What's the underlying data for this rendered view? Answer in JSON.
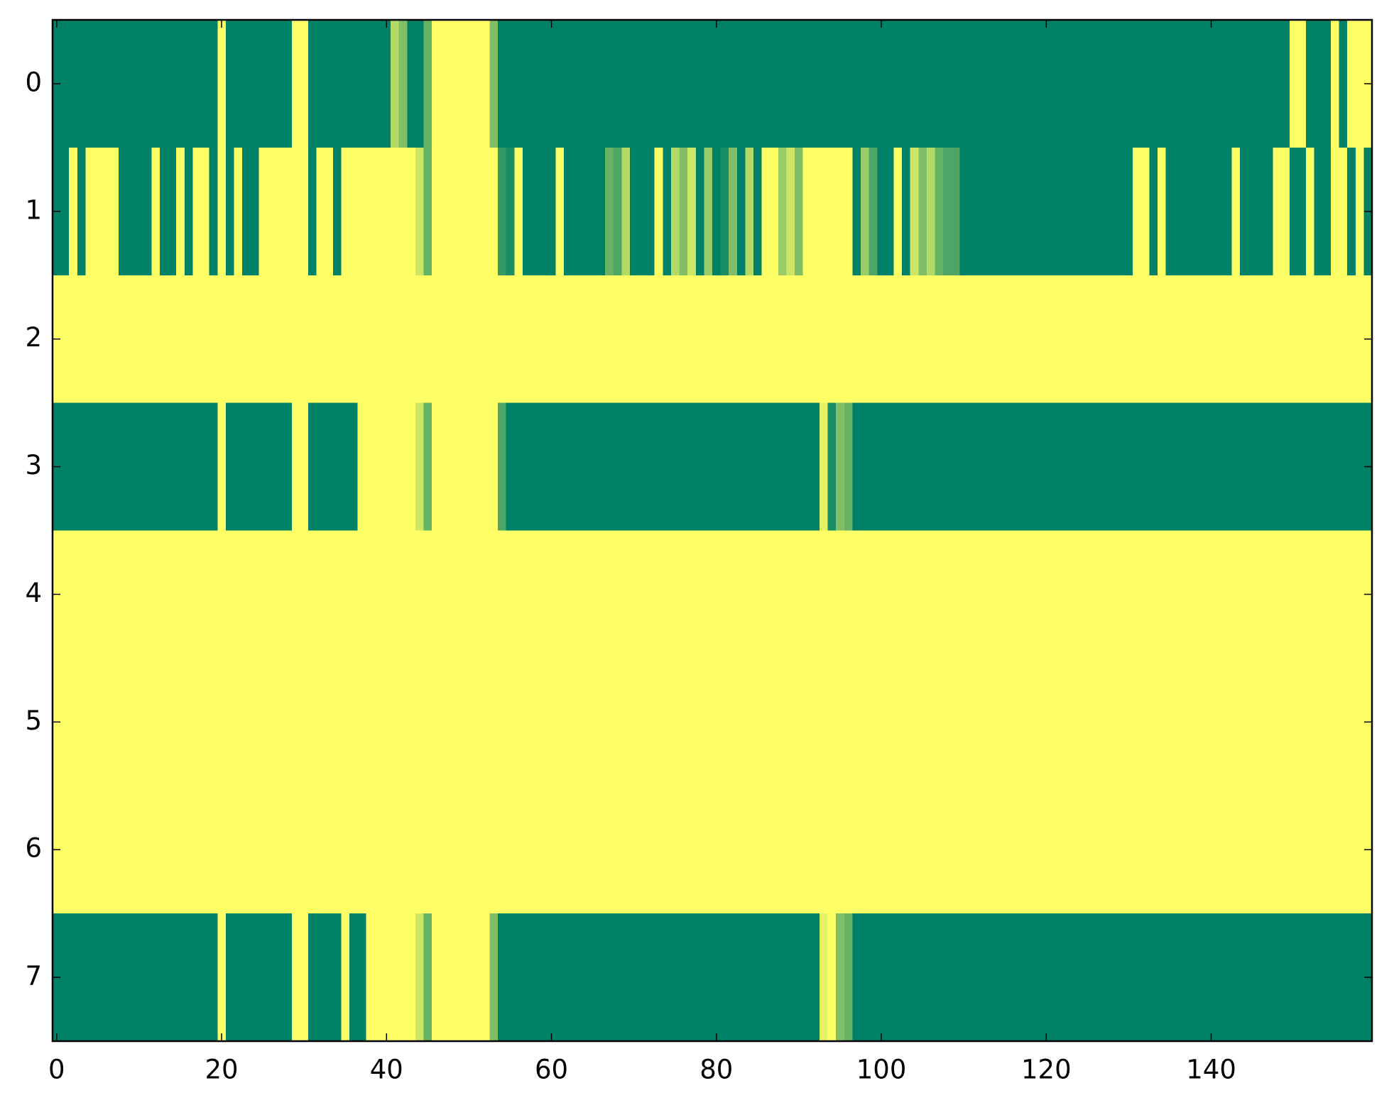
{
  "chart_data": {
    "type": "heatmap",
    "colormap": "summer",
    "xlim": [
      -0.5,
      159.5
    ],
    "ylim": [
      7.5,
      -0.5
    ],
    "xticks": [
      0,
      20,
      40,
      60,
      80,
      100,
      120,
      140
    ],
    "yticks": [
      0,
      1,
      2,
      3,
      4,
      5,
      6,
      7
    ],
    "z": [
      [
        0,
        0,
        0,
        0,
        0,
        0,
        0,
        0,
        0,
        0,
        0,
        0,
        0,
        0,
        0,
        0,
        0,
        0,
        0,
        0,
        1,
        0,
        0,
        0,
        0,
        0,
        0,
        0,
        0,
        1,
        1,
        0,
        0,
        0,
        0,
        0,
        0,
        0,
        0,
        0,
        0,
        0.7,
        0.5,
        0,
        0,
        0.4,
        1,
        1,
        1,
        1,
        1,
        1,
        1,
        0.5,
        0,
        0,
        0,
        0,
        0,
        0,
        0,
        0,
        0,
        0,
        0,
        0,
        0,
        0,
        0,
        0,
        0,
        0,
        0,
        0,
        0,
        0,
        0,
        0,
        0,
        0,
        0,
        0,
        0,
        0,
        0,
        0,
        0,
        0,
        0,
        0,
        0,
        0,
        0,
        0,
        0,
        0,
        0,
        0,
        0,
        0,
        0,
        0,
        0,
        0,
        0,
        0,
        0,
        0,
        0,
        0,
        0,
        0,
        0,
        0,
        0,
        0,
        0,
        0,
        0,
        0,
        0,
        0,
        0,
        0,
        0,
        0,
        0,
        0,
        0,
        0,
        0,
        0,
        0,
        0,
        0,
        0,
        0,
        0,
        0,
        0,
        0,
        0,
        0,
        0,
        0,
        0,
        0,
        0,
        0,
        0,
        1,
        1,
        0,
        0,
        0,
        1,
        0,
        1,
        1,
        1
      ],
      [
        0,
        0,
        1,
        0,
        1,
        1,
        1,
        1,
        0,
        0,
        0,
        0,
        1,
        0,
        0,
        1,
        0,
        1,
        1,
        0,
        1,
        0,
        1,
        0,
        0,
        1,
        1,
        1,
        1,
        1,
        1,
        0,
        1,
        1,
        0,
        1,
        1,
        1,
        1,
        1,
        1,
        1,
        1,
        1,
        0.8,
        0.4,
        1,
        1,
        1,
        1,
        1,
        1,
        1,
        1,
        0.2,
        0.1,
        1,
        0,
        0,
        0,
        0,
        1,
        0,
        0,
        0,
        0,
        0,
        0.4,
        0.3,
        0.7,
        0,
        0,
        0,
        1,
        0,
        0.7,
        0.5,
        0.8,
        0,
        0.6,
        0,
        0.1,
        0.5,
        0,
        0.7,
        0,
        1,
        1,
        0.6,
        0.8,
        0.5,
        1,
        1,
        1,
        1,
        1,
        1,
        0,
        0.6,
        0.3,
        0,
        0,
        1,
        0,
        0.8,
        0.5,
        0.7,
        0.4,
        0.3,
        0.3,
        0,
        0,
        0,
        0,
        0,
        0,
        0,
        0,
        0,
        0,
        0,
        0,
        0,
        0,
        0,
        0,
        0,
        0,
        0,
        0,
        0,
        1,
        1,
        0,
        1,
        0,
        0,
        0,
        0,
        0,
        0,
        0,
        0,
        1,
        0,
        0,
        0,
        0,
        1,
        1,
        0,
        0,
        1,
        0,
        0,
        1,
        1,
        0,
        1,
        0
      ],
      [
        1,
        1,
        1,
        1,
        1,
        1,
        1,
        1,
        1,
        1,
        1,
        1,
        1,
        1,
        1,
        1,
        1,
        1,
        1,
        1,
        1,
        1,
        1,
        1,
        1,
        1,
        1,
        1,
        1,
        1,
        1,
        1,
        1,
        1,
        1,
        1,
        1,
        1,
        1,
        1,
        1,
        1,
        1,
        1,
        1,
        1,
        1,
        1,
        1,
        1,
        1,
        1,
        1,
        1,
        1,
        1,
        1,
        1,
        1,
        1,
        1,
        1,
        1,
        1,
        1,
        1,
        1,
        1,
        1,
        1,
        1,
        1,
        1,
        1,
        1,
        1,
        1,
        1,
        1,
        1,
        1,
        1,
        1,
        1,
        1,
        1,
        1,
        1,
        1,
        1,
        1,
        1,
        1,
        1,
        1,
        1,
        1,
        1,
        1,
        1,
        1,
        1,
        1,
        1,
        1,
        1,
        1,
        1,
        1,
        1,
        1,
        1,
        1,
        1,
        1,
        1,
        1,
        1,
        1,
        1,
        1,
        1,
        1,
        1,
        1,
        1,
        1,
        1,
        1,
        1,
        1,
        1,
        1,
        1,
        1,
        1,
        1,
        1,
        1,
        1,
        1,
        1,
        1,
        1,
        1,
        1,
        1,
        1,
        1,
        1,
        1,
        1,
        1,
        1,
        1,
        1,
        1,
        1,
        1,
        1
      ],
      [
        0,
        0,
        0,
        0,
        0,
        0,
        0,
        0,
        0,
        0,
        0,
        0,
        0,
        0,
        0,
        0,
        0,
        0,
        0,
        0,
        1,
        0,
        0,
        0,
        0,
        0,
        0,
        0,
        0,
        1,
        1,
        0,
        0,
        0,
        0,
        0,
        0,
        1,
        1,
        1,
        1,
        1,
        1,
        1,
        0.8,
        0.4,
        1,
        1,
        1,
        1,
        1,
        1,
        1,
        1,
        0.3,
        0,
        0,
        0,
        0,
        0,
        0,
        0,
        0,
        0,
        0,
        0,
        0,
        0,
        0,
        0,
        0,
        0,
        0,
        0,
        0,
        0,
        0,
        0,
        0,
        0,
        0,
        0,
        0,
        0,
        0,
        0,
        0,
        0,
        0,
        0,
        0,
        0,
        0,
        0.9,
        0.1,
        0.5,
        0.4,
        0,
        0,
        0,
        0,
        0,
        0,
        0,
        0,
        0,
        0,
        0,
        0,
        0,
        0,
        0,
        0,
        0,
        0,
        0,
        0,
        0,
        0,
        0,
        0,
        0,
        0,
        0,
        0,
        0,
        0,
        0,
        0,
        0,
        0,
        0,
        0,
        0,
        0,
        0,
        0,
        0,
        0,
        0,
        0,
        0,
        0,
        0,
        0,
        0,
        0,
        0,
        0,
        0,
        0,
        0,
        0,
        0,
        0,
        0,
        0,
        0,
        0,
        0
      ],
      [
        1,
        1,
        1,
        1,
        1,
        1,
        1,
        1,
        1,
        1,
        1,
        1,
        1,
        1,
        1,
        1,
        1,
        1,
        1,
        1,
        1,
        1,
        1,
        1,
        1,
        1,
        1,
        1,
        1,
        1,
        1,
        1,
        1,
        1,
        1,
        1,
        1,
        1,
        1,
        1,
        1,
        1,
        1,
        1,
        1,
        1,
        1,
        1,
        1,
        1,
        1,
        1,
        1,
        1,
        1,
        1,
        1,
        1,
        1,
        1,
        1,
        1,
        1,
        1,
        1,
        1,
        1,
        1,
        1,
        1,
        1,
        1,
        1,
        1,
        1,
        1,
        1,
        1,
        1,
        1,
        1,
        1,
        1,
        1,
        1,
        1,
        1,
        1,
        1,
        1,
        1,
        1,
        1,
        1,
        1,
        1,
        1,
        1,
        1,
        1,
        1,
        1,
        1,
        1,
        1,
        1,
        1,
        1,
        1,
        1,
        1,
        1,
        1,
        1,
        1,
        1,
        1,
        1,
        1,
        1,
        1,
        1,
        1,
        1,
        1,
        1,
        1,
        1,
        1,
        1,
        1,
        1,
        1,
        1,
        1,
        1,
        1,
        1,
        1,
        1,
        1,
        1,
        1,
        1,
        1,
        1,
        1,
        1,
        1,
        1,
        1,
        1,
        1,
        1,
        1,
        1,
        1,
        1,
        1,
        1
      ],
      [
        1,
        1,
        1,
        1,
        1,
        1,
        1,
        1,
        1,
        1,
        1,
        1,
        1,
        1,
        1,
        1,
        1,
        1,
        1,
        1,
        1,
        1,
        1,
        1,
        1,
        1,
        1,
        1,
        1,
        1,
        1,
        1,
        1,
        1,
        1,
        1,
        1,
        1,
        1,
        1,
        1,
        1,
        1,
        1,
        1,
        1,
        1,
        1,
        1,
        1,
        1,
        1,
        1,
        1,
        1,
        1,
        1,
        1,
        1,
        1,
        1,
        1,
        1,
        1,
        1,
        1,
        1,
        1,
        1,
        1,
        1,
        1,
        1,
        1,
        1,
        1,
        1,
        1,
        1,
        1,
        1,
        1,
        1,
        1,
        1,
        1,
        1,
        1,
        1,
        1,
        1,
        1,
        1,
        1,
        1,
        1,
        1,
        1,
        1,
        1,
        1,
        1,
        1,
        1,
        1,
        1,
        1,
        1,
        1,
        1,
        1,
        1,
        1,
        1,
        1,
        1,
        1,
        1,
        1,
        1,
        1,
        1,
        1,
        1,
        1,
        1,
        1,
        1,
        1,
        1,
        1,
        1,
        1,
        1,
        1,
        1,
        1,
        1,
        1,
        1,
        1,
        1,
        1,
        1,
        1,
        1,
        1,
        1,
        1,
        1,
        1,
        1,
        1,
        1,
        1,
        1,
        1,
        1,
        1,
        1
      ],
      [
        1,
        1,
        1,
        1,
        1,
        1,
        1,
        1,
        1,
        1,
        1,
        1,
        1,
        1,
        1,
        1,
        1,
        1,
        1,
        1,
        1,
        1,
        1,
        1,
        1,
        1,
        1,
        1,
        1,
        1,
        1,
        1,
        1,
        1,
        1,
        1,
        1,
        1,
        1,
        1,
        1,
        1,
        1,
        1,
        1,
        1,
        1,
        1,
        1,
        1,
        1,
        1,
        1,
        1,
        1,
        1,
        1,
        1,
        1,
        1,
        1,
        1,
        1,
        1,
        1,
        1,
        1,
        1,
        1,
        1,
        1,
        1,
        1,
        1,
        1,
        1,
        1,
        1,
        1,
        1,
        1,
        1,
        1,
        1,
        1,
        1,
        1,
        1,
        1,
        1,
        1,
        1,
        1,
        1,
        1,
        1,
        1,
        1,
        1,
        1,
        1,
        1,
        1,
        1,
        1,
        1,
        1,
        1,
        1,
        1,
        1,
        1,
        1,
        1,
        1,
        1,
        1,
        1,
        1,
        1,
        1,
        1,
        1,
        1,
        1,
        1,
        1,
        1,
        1,
        1,
        1,
        1,
        1,
        1,
        1,
        1,
        1,
        1,
        1,
        1,
        1,
        1,
        1,
        1,
        1,
        1,
        1,
        1,
        1,
        1,
        1,
        1,
        1,
        1,
        1,
        1,
        1,
        1,
        1,
        1
      ],
      [
        0,
        0,
        0,
        0,
        0,
        0,
        0,
        0,
        0,
        0,
        0,
        0,
        0,
        0,
        0,
        0,
        0,
        0,
        0,
        0,
        1,
        0,
        0,
        0,
        0,
        0,
        0,
        0,
        0,
        1,
        1,
        0,
        0,
        0,
        0,
        1,
        0,
        0,
        1,
        1,
        1,
        1,
        1,
        1,
        0.8,
        0.4,
        1,
        1,
        1,
        1,
        1,
        1,
        1,
        0.5,
        0,
        0,
        0,
        0,
        0,
        0,
        0,
        0,
        0,
        0,
        0,
        0,
        0,
        0,
        0,
        0,
        0,
        0,
        0,
        0,
        0,
        0,
        0,
        0,
        0,
        0,
        0,
        0,
        0,
        0,
        0,
        0,
        0,
        0,
        0,
        0,
        0,
        0,
        0,
        0.9,
        1,
        0.5,
        0.4,
        0,
        0,
        0,
        0,
        0,
        0,
        0,
        0,
        0,
        0,
        0,
        0,
        0,
        0,
        0,
        0,
        0,
        0,
        0,
        0,
        0,
        0,
        0,
        0,
        0,
        0,
        0,
        0,
        0,
        0,
        0,
        0,
        0,
        0,
        0,
        0,
        0,
        0,
        0,
        0,
        0,
        0,
        0,
        0,
        0,
        0,
        0,
        0,
        0,
        0,
        0,
        0,
        0,
        0,
        0,
        0,
        0,
        0,
        0,
        0,
        0,
        0,
        0
      ]
    ]
  }
}
